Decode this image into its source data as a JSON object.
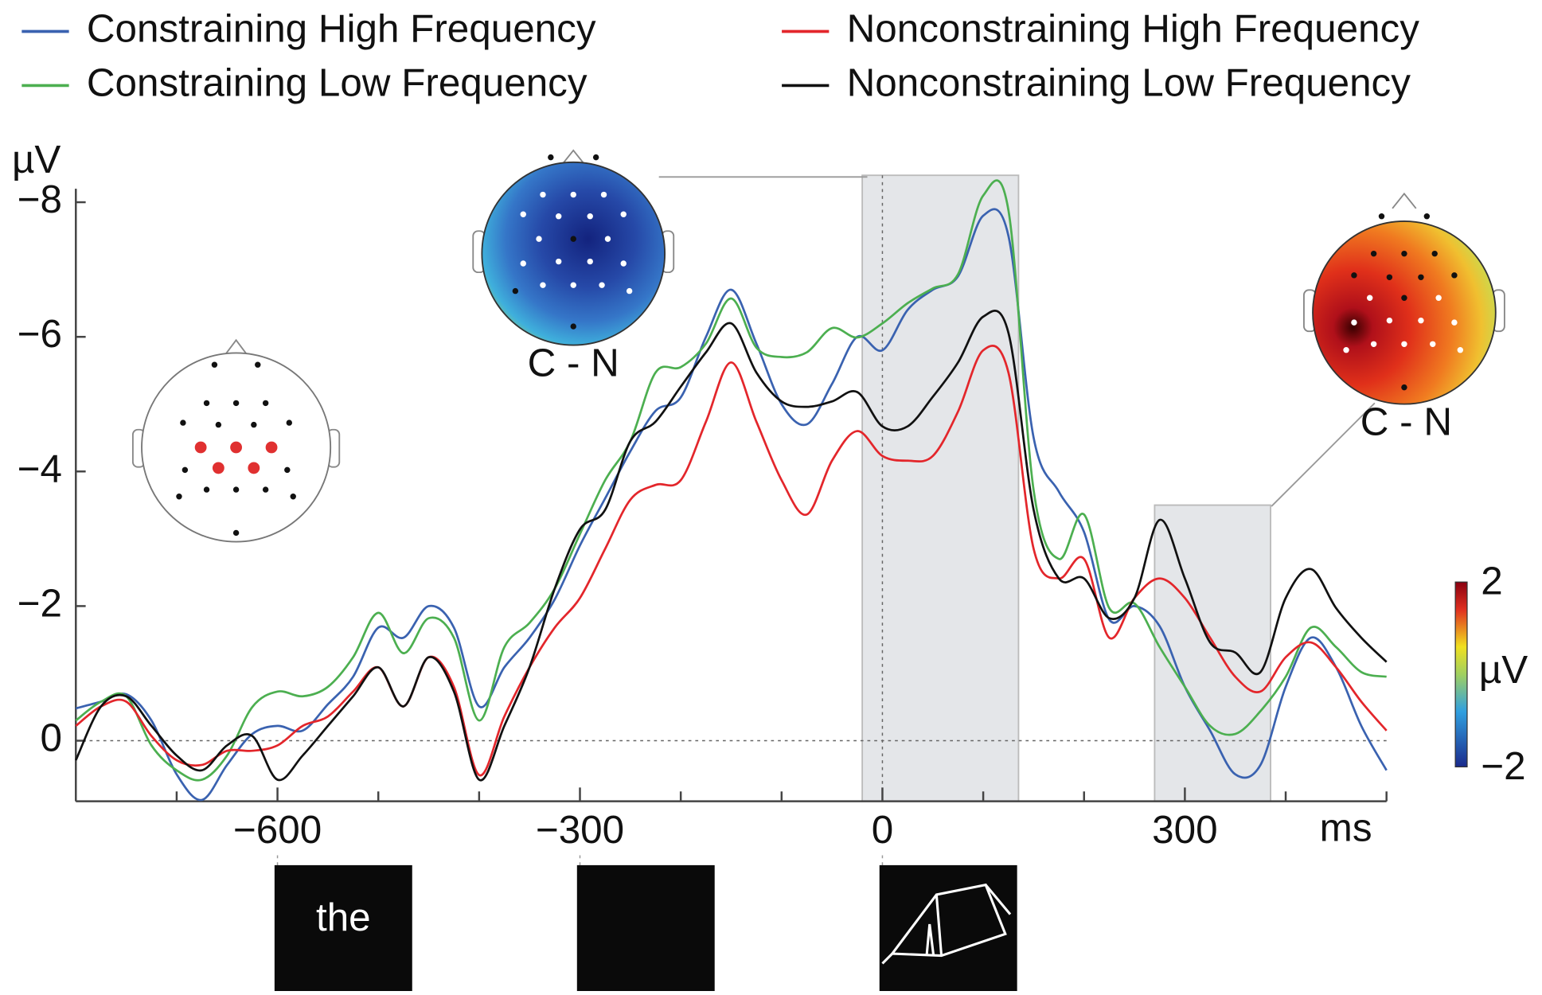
{
  "chart_data": {
    "type": "line",
    "y_label": "µV",
    "x_label": "ms",
    "legend": "top",
    "grid": false,
    "zero_line": true,
    "y_inverted": true,
    "x": [
      -800,
      -775,
      -750,
      -725,
      -700,
      -675,
      -650,
      -625,
      -600,
      -575,
      -550,
      -525,
      -500,
      -475,
      -450,
      -425,
      -400,
      -375,
      -350,
      -325,
      -300,
      -275,
      -250,
      -225,
      -200,
      -175,
      -150,
      -125,
      -100,
      -75,
      -50,
      -25,
      0,
      25,
      50,
      75,
      100,
      125,
      150,
      175,
      200,
      225,
      250,
      275,
      300,
      325,
      350,
      375,
      400,
      425,
      450,
      475,
      500
    ],
    "series": [
      {
        "name": "Constraining High Frequency",
        "color": "#3a62b0",
        "values": [
          -0.48,
          -0.58,
          -0.69,
          -0.3,
          0.5,
          0.88,
          0.36,
          -0.1,
          -0.22,
          -0.15,
          -0.54,
          -0.95,
          -1.68,
          -1.53,
          -2.0,
          -1.68,
          -0.51,
          -1.09,
          -1.53,
          -2.1,
          -2.9,
          -3.6,
          -4.3,
          -4.9,
          -5.1,
          -6.0,
          -6.7,
          -5.9,
          -5.0,
          -4.7,
          -5.3,
          -6.0,
          -5.8,
          -6.4,
          -6.7,
          -6.9,
          -7.8,
          -7.5,
          -4.5,
          -3.7,
          -3.1,
          -1.8,
          -2.0,
          -1.7,
          -0.8,
          -0.15,
          0.5,
          0.36,
          -0.8,
          -1.53,
          -1.09,
          -0.22,
          0.44
        ]
      },
      {
        "name": "Constraining Low Frequency",
        "color": "#4caf50",
        "values": [
          -0.3,
          -0.58,
          -0.66,
          0.07,
          0.44,
          0.58,
          0.22,
          -0.5,
          -0.73,
          -0.66,
          -0.8,
          -1.24,
          -1.9,
          -1.3,
          -1.82,
          -1.53,
          -0.3,
          -1.39,
          -1.75,
          -2.26,
          -3.07,
          -3.87,
          -4.45,
          -5.47,
          -5.55,
          -5.9,
          -6.57,
          -5.84,
          -5.7,
          -5.77,
          -6.13,
          -5.99,
          -6.2,
          -6.5,
          -6.72,
          -6.93,
          -8.1,
          -7.88,
          -3.72,
          -2.7,
          -3.36,
          -1.97,
          -2.04,
          -1.39,
          -0.8,
          -0.22,
          -0.1,
          -0.44,
          -0.95,
          -1.68,
          -1.39,
          -1.02,
          -0.95
        ]
      },
      {
        "name": "Nonconstraining High Frequency",
        "color": "#e3262b",
        "values": [
          -0.22,
          -0.51,
          -0.58,
          -0.07,
          0.29,
          0.36,
          0.15,
          0.15,
          0.07,
          -0.22,
          -0.36,
          -0.73,
          -1.09,
          -0.51,
          -1.24,
          -0.8,
          0.51,
          -0.36,
          -1.09,
          -1.68,
          -2.12,
          -2.85,
          -3.58,
          -3.8,
          -3.87,
          -4.74,
          -5.62,
          -4.74,
          -3.87,
          -3.36,
          -4.16,
          -4.6,
          -4.23,
          -4.16,
          -4.23,
          -4.89,
          -5.8,
          -5.47,
          -2.85,
          -2.41,
          -2.7,
          -1.53,
          -2.12,
          -2.41,
          -2.12,
          -1.53,
          -0.95,
          -0.73,
          -1.24,
          -1.46,
          -1.09,
          -0.58,
          -0.15
        ]
      },
      {
        "name": "Nonconstraining Low Frequency",
        "color": "#111111",
        "values": [
          0.29,
          -0.51,
          -0.66,
          -0.22,
          0.22,
          0.44,
          0.07,
          -0.07,
          0.58,
          0.22,
          -0.22,
          -0.66,
          -1.09,
          -0.51,
          -1.24,
          -0.73,
          0.58,
          -0.22,
          -1.09,
          -2.26,
          -3.14,
          -3.43,
          -4.45,
          -4.74,
          -5.26,
          -5.77,
          -6.2,
          -5.47,
          -5.04,
          -4.96,
          -5.04,
          -5.18,
          -4.67,
          -4.67,
          -5.11,
          -5.62,
          -6.3,
          -6.06,
          -3.43,
          -2.41,
          -2.41,
          -1.82,
          -2.12,
          -3.28,
          -2.41,
          -1.46,
          -1.31,
          -1.02,
          -2.12,
          -2.55,
          -1.97,
          -1.53,
          -1.17
        ]
      }
    ],
    "xlim": [
      -800,
      500
    ],
    "xticks": [
      {
        "value": -600,
        "label": "−600"
      },
      {
        "value": -300,
        "label": "−300"
      },
      0,
      300
    ],
    "xminorticks": [
      -700,
      -500,
      -400,
      -200,
      -100,
      100,
      200,
      400,
      500
    ],
    "ylim": [
      0.9,
      -8.2
    ],
    "yticks": [
      0,
      {
        "value": -2,
        "label": "−2"
      },
      {
        "value": -4,
        "label": "−4"
      },
      {
        "value": -6,
        "label": "−6"
      },
      {
        "value": -8,
        "label": "−8"
      }
    ],
    "shaded_windows": [
      {
        "xlim": [
          -20,
          135
        ],
        "ymax": -8.4
      },
      {
        "xlim": [
          270,
          385
        ],
        "ymax": -3.5
      }
    ],
    "topomap_labels": [
      "C - N",
      "C - N"
    ],
    "colorbar": {
      "label": "µV",
      "clim": [
        -2,
        2
      ],
      "ticks": [
        2,
        {
          "value": -2,
          "label": "−2"
        }
      ]
    },
    "stimuli": [
      {
        "onset": -600,
        "text": "the"
      },
      {
        "onset": -300
      },
      {
        "onset": 0
      }
    ]
  }
}
